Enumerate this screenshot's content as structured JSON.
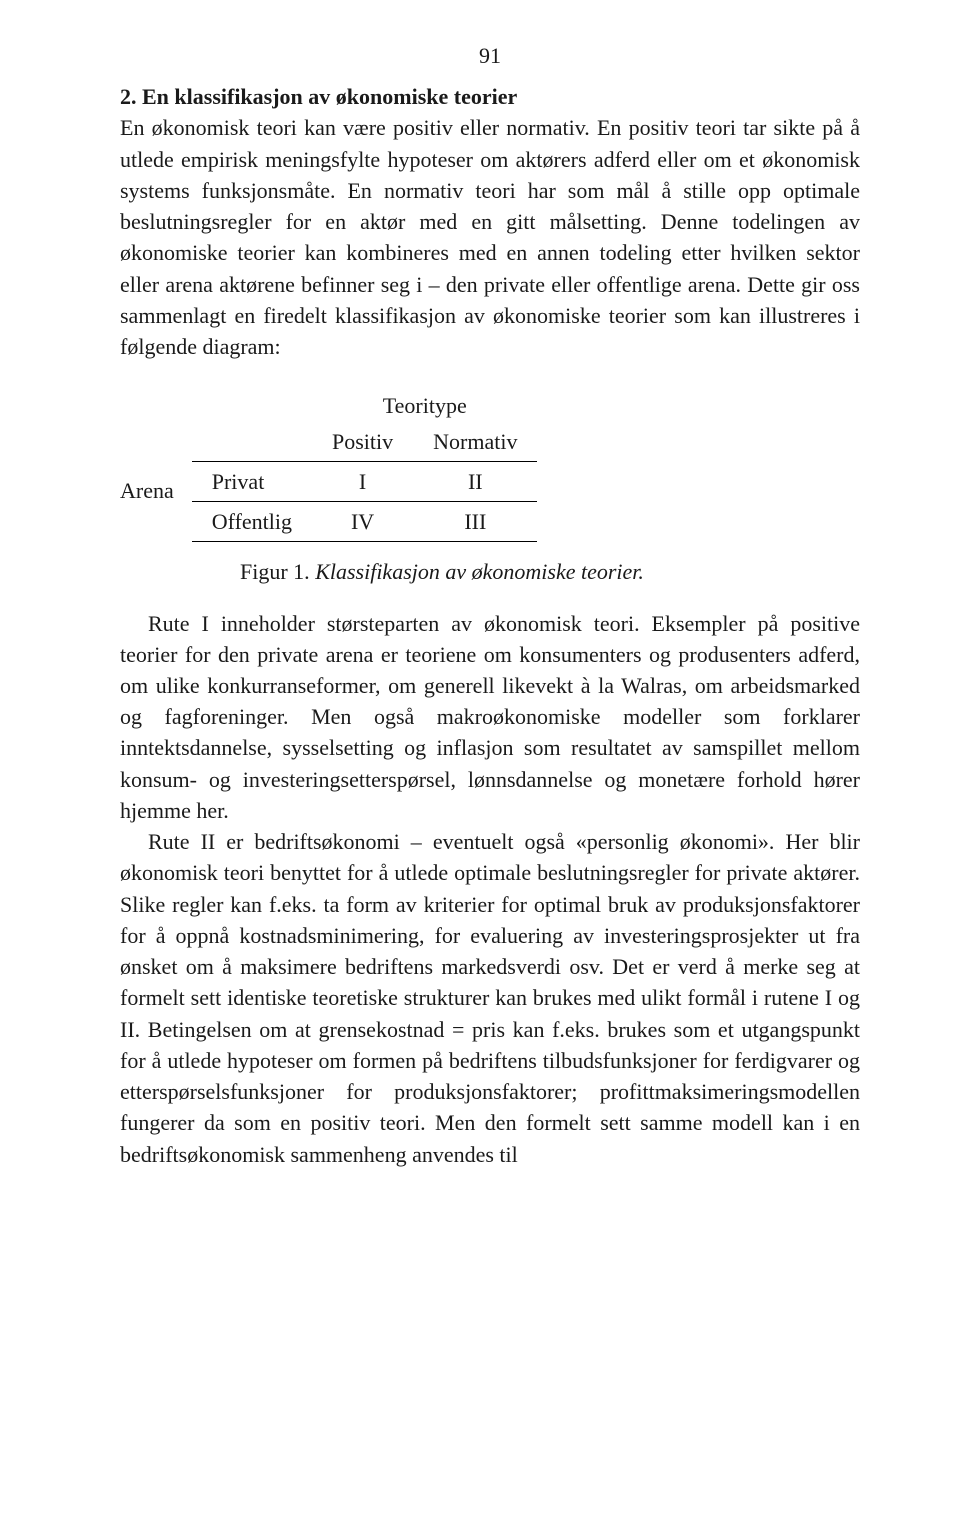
{
  "page": {
    "number": "91"
  },
  "section": {
    "title": "2. En klassifikasjon av økonomiske teorier",
    "para1": "En økonomisk teori kan være positiv eller normativ. En positiv teori tar sikte på å utlede empirisk meningsfylte hypoteser om aktørers adferd eller om et økonomisk systems funksjonsmåte. En normativ teori har som mål å stille opp optimale beslutningsregler for en aktør med en gitt målsetting. Denne todelingen av økonomiske teorier kan kombineres med en annen todeling etter hvilken sektor eller arena aktørene befinner seg i – den private eller offentlige arena. Dette gir oss sammenlagt en firedelt klassifikasjon av økonomiske teorier som kan illustreres i følgende diagram:"
  },
  "table": {
    "arena_label": "Arena",
    "supertitle": "Teoritype",
    "col1": "Positiv",
    "col2": "Normativ",
    "row1_label": "Privat",
    "row1_c1": "I",
    "row1_c2": "II",
    "row2_label": "Offentlig",
    "row2_c1": "IV",
    "row2_c2": "III"
  },
  "figure": {
    "label": "Figur 1.",
    "title": " Klassifikasjon av økonomiske teorier."
  },
  "body": {
    "para2": "Rute I inneholder størsteparten av økonomisk teori. Eksempler på positive teorier for den private arena er teoriene om konsumenters og produsenters adferd, om ulike konkurranseformer, om generell likevekt à la Walras, om arbeidsmarked og fagforeninger. Men også makroøkonomiske modeller som forklarer inntektsdannelse, sysselsetting og inflasjon som resultatet av samspillet mellom konsum- og investeringsetterspørsel, lønnsdannelse og monetære forhold hører hjemme her.",
    "para3": "Rute II er bedriftsøkonomi – eventuelt også «personlig økonomi». Her blir økonomisk teori benyttet for å utlede optimale beslutningsregler for private aktører. Slike regler kan f.eks. ta form av kriterier for optimal bruk av produksjonsfaktorer for å oppnå kostnadsminimering, for evaluering av investeringsprosjekter ut fra ønsket om å maksimere bedriftens markedsverdi osv. Det er verd å merke seg at formelt sett identiske teoretiske strukturer kan brukes med ulikt formål i rutene I og II. Betingelsen om at grensekostnad = pris kan f.eks. brukes som et utgangspunkt for å utlede hypoteser om formen på bedriftens tilbudsfunksjoner for ferdigvarer og etterspørselsfunksjoner for produksjonsfaktorer; profittmaksimeringsmodellen fungerer da som en positiv teori. Men den formelt sett samme modell kan i en bedriftsøkonomisk sammenheng anvendes til"
  }
}
